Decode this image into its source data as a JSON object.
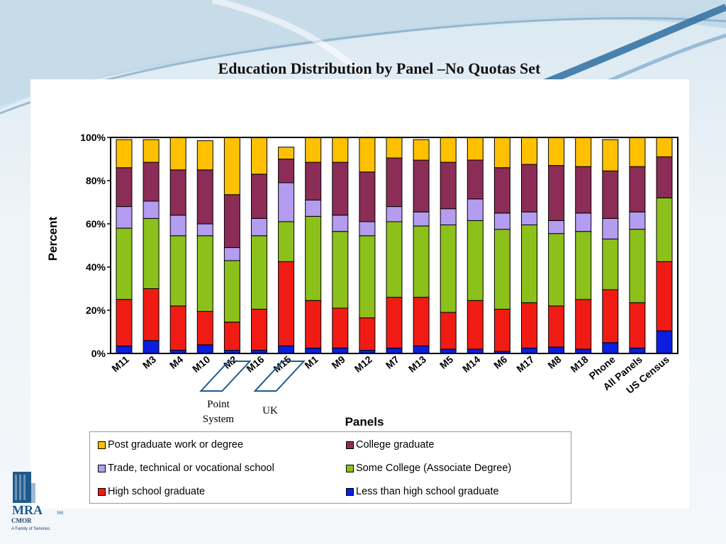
{
  "slide": {
    "title": "Education Distribution by Panel –No Quotas Set",
    "logo_text": "MRA",
    "logo_sub": "CMOR",
    "logo_tag": "A Family of Services"
  },
  "annotations": {
    "point_system": "Point System",
    "uk": "UK"
  },
  "colors": {
    "Post graduate work or degree": "#ffc000",
    "College graduate": "#8b2d56",
    "Trade, technical or vocational school": "#b49cf0",
    "Some College (Associate Degree)": "#8cc01a",
    "High school graduate": "#f01c14",
    "Less than high school graduate": "#0a1ee0"
  },
  "chart_data": {
    "type": "bar",
    "stacked": true,
    "title": "Education Distribution by Panel –No Quotas Set",
    "xlabel": "Panels",
    "ylabel": "Percent",
    "ylim": [
      0,
      100
    ],
    "yticks": [
      "0%",
      "20%",
      "40%",
      "60%",
      "80%",
      "100%"
    ],
    "grid": false,
    "legend_position": "bottom",
    "categories": [
      "M11",
      "M3",
      "M4",
      "M10",
      "M2",
      "M16",
      "M15",
      "M1",
      "M9",
      "M12",
      "M7",
      "M13",
      "M5",
      "M14",
      "M6",
      "M17",
      "M8",
      "M18",
      "Phone",
      "All Panels",
      "US Census"
    ],
    "series": [
      {
        "name": "Less than high school graduate",
        "values": [
          3.5,
          6,
          1.5,
          4,
          1.5,
          1.5,
          3.5,
          2.5,
          2.5,
          1.5,
          2.5,
          3.5,
          2,
          2,
          1,
          2.5,
          3,
          2,
          5,
          2.5,
          10.5
        ]
      },
      {
        "name": "High school graduate",
        "values": [
          21.5,
          24,
          20.5,
          15.5,
          13,
          19,
          39,
          22,
          18.5,
          15,
          23.5,
          22.5,
          17,
          22.5,
          19.5,
          21,
          19,
          23,
          24.5,
          21,
          32
        ]
      },
      {
        "name": "Some College (Associate Degree)",
        "values": [
          33,
          32.5,
          32.5,
          35,
          28.5,
          34,
          18.5,
          39,
          35.5,
          38,
          35,
          33,
          40.5,
          37,
          37,
          36,
          33.5,
          31.5,
          23.5,
          34,
          29.5
        ]
      },
      {
        "name": "Trade, technical or vocational school",
        "values": [
          10,
          8,
          9.5,
          5.5,
          6,
          8,
          18,
          7.5,
          7.5,
          6.5,
          7,
          6.5,
          7.5,
          10,
          7.5,
          6,
          6,
          8.5,
          9.5,
          8,
          0
        ]
      },
      {
        "name": "College graduate",
        "values": [
          18,
          18,
          21,
          25,
          24.5,
          20.5,
          11,
          17.5,
          24.5,
          23,
          22.5,
          24,
          21.5,
          18,
          21,
          22,
          25.5,
          21.5,
          22,
          21,
          19
        ]
      },
      {
        "name": "Post graduate work or degree",
        "values": [
          13,
          10.5,
          15,
          13.5,
          26.5,
          17,
          5.5,
          11.5,
          11.5,
          16,
          9.5,
          9.5,
          11.5,
          10.5,
          14,
          12.5,
          13,
          13.5,
          14.5,
          13.5,
          9
        ]
      }
    ]
  },
  "legend": {
    "items": [
      {
        "label": "Post graduate work or degree",
        "color": "#ffc000"
      },
      {
        "label": "College graduate",
        "color": "#8b2d56"
      },
      {
        "label": "Trade, technical or vocational school",
        "color": "#b49cf0"
      },
      {
        "label": "Some College (Associate Degree)",
        "color": "#8cc01a"
      },
      {
        "label": "High school graduate",
        "color": "#f01c14"
      },
      {
        "label": "Less than high school graduate",
        "color": "#0a1ee0"
      }
    ]
  }
}
